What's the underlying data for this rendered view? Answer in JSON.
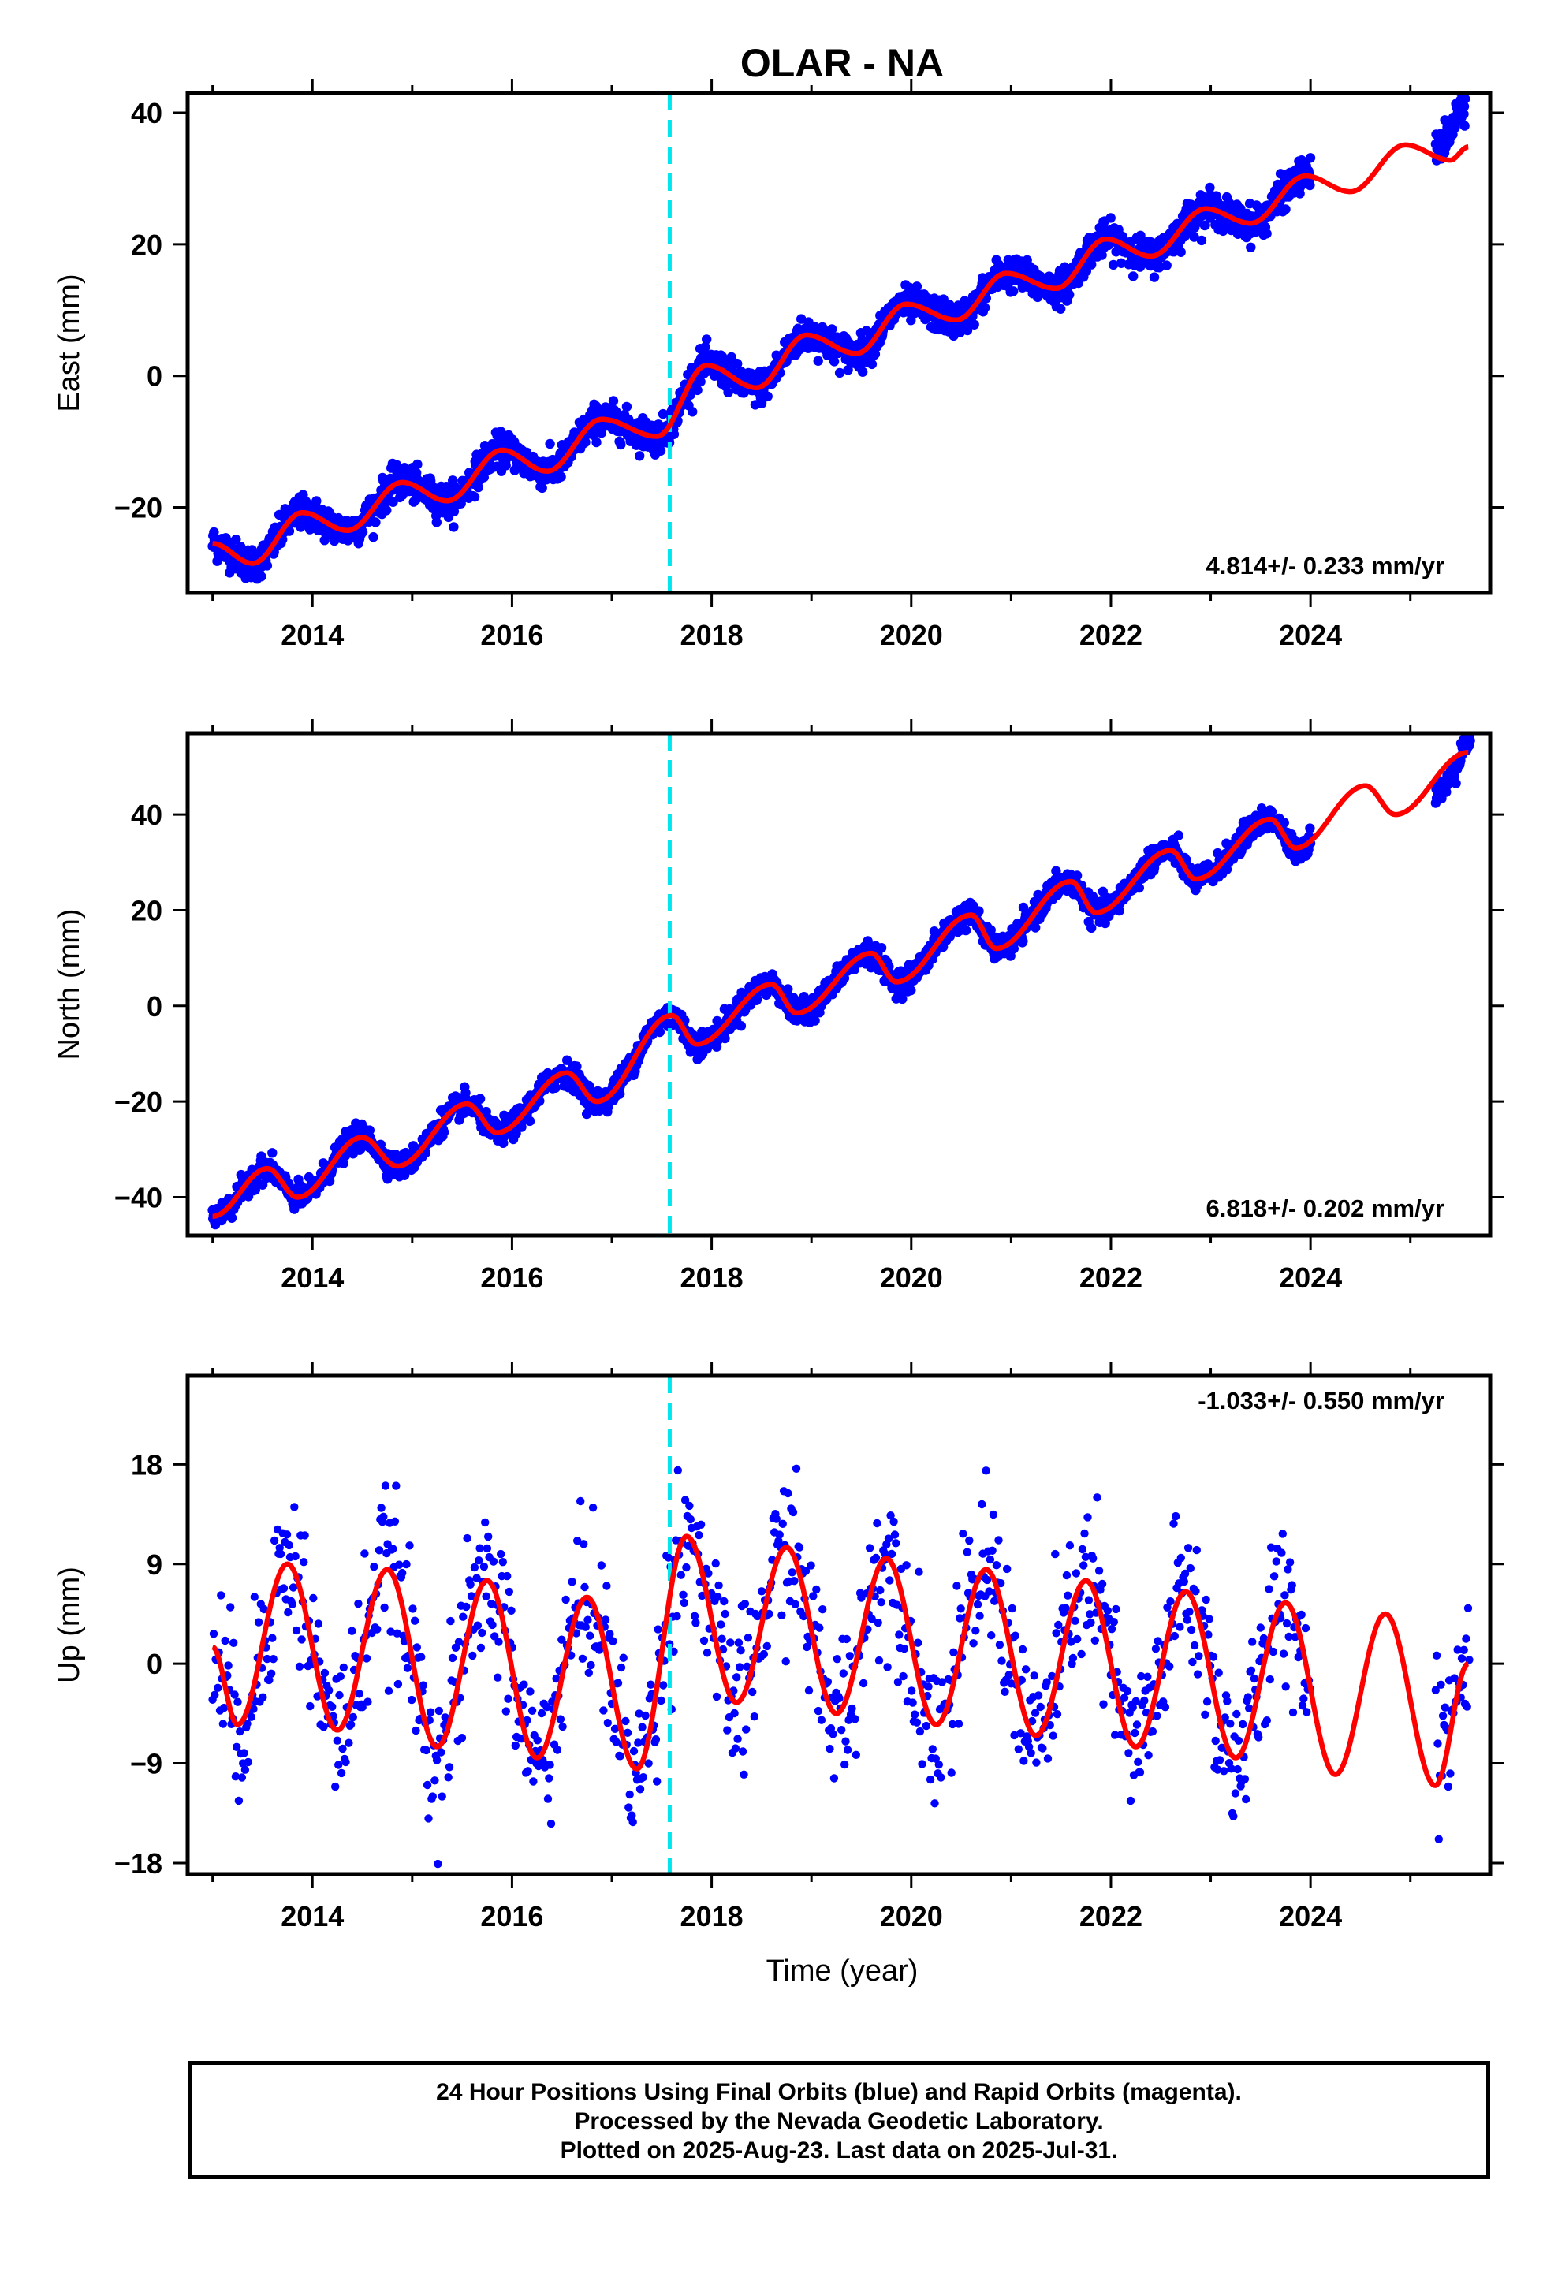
{
  "figure": {
    "title": "OLAR - NA",
    "xlabel": "Time (year)",
    "footer_lines": [
      "24 Hour Positions Using Final Orbits (blue) and Rapid Orbits (magenta).",
      "Processed by the Nevada Geodetic Laboratory.",
      "Plotted on 2025-Aug-23. Last data on 2025-Jul-31."
    ],
    "colors": {
      "data_points": "#0000ff",
      "model_fit": "#ff0000",
      "offset_line": "#00e5ee",
      "frame": "#000000"
    }
  },
  "chart_data": [
    {
      "type": "scatter",
      "ylabel": "East (mm)",
      "rate_label": "4.814+/- 0.233 mm/yr",
      "xlim": [
        2012.75,
        2025.8
      ],
      "ylim": [
        -33,
        43
      ],
      "x_ticks": [
        2014,
        2016,
        2018,
        2020,
        2022,
        2024
      ],
      "y_ticks": [
        -20,
        0,
        20,
        40
      ],
      "offset_line_x": 2017.58,
      "data_gap": [
        2024.0,
        2025.25
      ],
      "series": [
        {
          "role": "daily-positions",
          "x": [
            2013.0,
            2013.5,
            2014.0,
            2014.5,
            2015.0,
            2015.5,
            2016.0,
            2016.5,
            2017.0,
            2017.5,
            2018.0,
            2018.5,
            2019.0,
            2019.5,
            2020.0,
            2020.5,
            2021.0,
            2021.5,
            2022.0,
            2022.5,
            2023.0,
            2023.5,
            2024.0,
            2025.3,
            2025.55
          ],
          "y": [
            -25.5,
            -28,
            -20.5,
            -23,
            -16.5,
            -18.5,
            -11,
            -14,
            -6.5,
            -9,
            1.5,
            -1.5,
            6,
            3.5,
            10.5,
            8.5,
            15,
            13,
            20.5,
            18,
            25,
            22.5,
            30,
            35,
            41
          ]
        },
        {
          "role": "model-fit",
          "x": [
            2013.0,
            2013.4,
            2013.9,
            2014.35,
            2014.9,
            2015.35,
            2015.9,
            2016.35,
            2016.9,
            2017.45,
            2017.95,
            2018.45,
            2018.95,
            2019.45,
            2019.95,
            2020.45,
            2020.95,
            2021.45,
            2021.95,
            2022.4,
            2022.95,
            2023.4,
            2023.95,
            2024.4,
            2024.95,
            2025.4,
            2025.58
          ],
          "y": [
            -25.5,
            -28.5,
            -20.8,
            -23.5,
            -16.2,
            -19,
            -11.3,
            -14.5,
            -6.6,
            -9.2,
            1.6,
            -1.8,
            6.2,
            3.4,
            10.9,
            8.5,
            15.6,
            13.3,
            20.8,
            18.2,
            25.4,
            23.2,
            30.4,
            28,
            35.1,
            32.8,
            34.8
          ]
        }
      ]
    },
    {
      "type": "scatter",
      "ylabel": "North (mm)",
      "rate_label": "6.818+/- 0.202 mm/yr",
      "xlim": [
        2012.75,
        2025.8
      ],
      "ylim": [
        -48,
        57
      ],
      "x_ticks": [
        2014,
        2016,
        2018,
        2020,
        2022,
        2024
      ],
      "y_ticks": [
        -40,
        -20,
        0,
        20,
        40
      ],
      "offset_line_x": 2017.58,
      "data_gap": [
        2024.0,
        2025.25
      ],
      "series": [
        {
          "role": "daily-positions",
          "x": [
            2013.0,
            2013.5,
            2013.85,
            2014.5,
            2014.85,
            2015.5,
            2015.85,
            2016.5,
            2016.85,
            2017.55,
            2017.85,
            2018.55,
            2018.85,
            2019.55,
            2019.85,
            2020.55,
            2020.85,
            2021.55,
            2021.85,
            2022.55,
            2022.85,
            2023.55,
            2023.85,
            2025.3,
            2025.6
          ],
          "y": [
            -44,
            -34,
            -41,
            -27,
            -34,
            -20,
            -27,
            -13,
            -20,
            -2,
            -8,
            5,
            -1,
            12,
            5,
            19,
            12,
            26,
            19,
            33,
            26,
            39,
            33,
            45,
            55
          ]
        },
        {
          "role": "model-fit",
          "x": [
            2013.0,
            2013.55,
            2013.85,
            2014.5,
            2014.85,
            2015.55,
            2015.85,
            2016.55,
            2016.85,
            2017.6,
            2017.85,
            2018.6,
            2018.85,
            2019.6,
            2019.85,
            2020.6,
            2020.85,
            2021.6,
            2021.85,
            2022.6,
            2022.85,
            2023.6,
            2023.85,
            2024.55,
            2024.85,
            2025.58
          ],
          "y": [
            -44,
            -34,
            -40,
            -27.5,
            -33.5,
            -20.5,
            -26.5,
            -14,
            -20,
            -2,
            -8,
            4.5,
            -1.5,
            11,
            5,
            19,
            12,
            26,
            19.5,
            32.5,
            26.5,
            39,
            33,
            46,
            40,
            53
          ]
        }
      ]
    },
    {
      "type": "scatter",
      "ylabel": "Up (mm)",
      "rate_label": "-1.033+/- 0.550 mm/yr",
      "xlim": [
        2012.75,
        2025.8
      ],
      "ylim": [
        -19,
        26
      ],
      "x_ticks": [
        2014,
        2016,
        2018,
        2020,
        2022,
        2024
      ],
      "y_ticks": [
        -18,
        -9,
        0,
        9,
        18
      ],
      "offset_line_x": 2017.58,
      "data_gap": [
        2024.0,
        2025.25
      ],
      "series": [
        {
          "role": "daily-positions",
          "x": [
            2013.0,
            2013.25,
            2013.75,
            2014.25,
            2014.75,
            2015.25,
            2015.75,
            2016.25,
            2016.75,
            2017.25,
            2017.75,
            2018.25,
            2018.75,
            2019.25,
            2019.75,
            2020.25,
            2020.75,
            2021.25,
            2021.75,
            2022.25,
            2022.75,
            2023.25,
            2023.75,
            2025.3,
            2025.6
          ],
          "y": [
            -2,
            -6,
            9,
            -6,
            9,
            -7,
            8,
            -9,
            6,
            -10,
            13,
            -4,
            11,
            -5,
            9,
            -6,
            9,
            -7,
            7,
            -8,
            6,
            -9,
            12,
            -4,
            3
          ]
        },
        {
          "role": "model-fit",
          "x": [
            2013.0,
            2013.25,
            2013.75,
            2014.25,
            2014.75,
            2015.25,
            2015.75,
            2016.25,
            2016.75,
            2017.25,
            2017.75,
            2018.25,
            2018.75,
            2019.25,
            2019.75,
            2020.25,
            2020.75,
            2021.25,
            2021.75,
            2022.25,
            2022.75,
            2023.25,
            2023.75,
            2024.25,
            2024.75,
            2025.25,
            2025.58
          ],
          "y": [
            1.5,
            -5.5,
            9,
            -6,
            8.5,
            -7.5,
            7.5,
            -8.5,
            6,
            -9.5,
            11.5,
            -3.5,
            10.5,
            -4.5,
            9.5,
            -5.5,
            8.5,
            -6.5,
            7.5,
            -7.5,
            6.5,
            -8.5,
            5.5,
            -10,
            4.5,
            -11,
            0
          ]
        }
      ]
    }
  ]
}
